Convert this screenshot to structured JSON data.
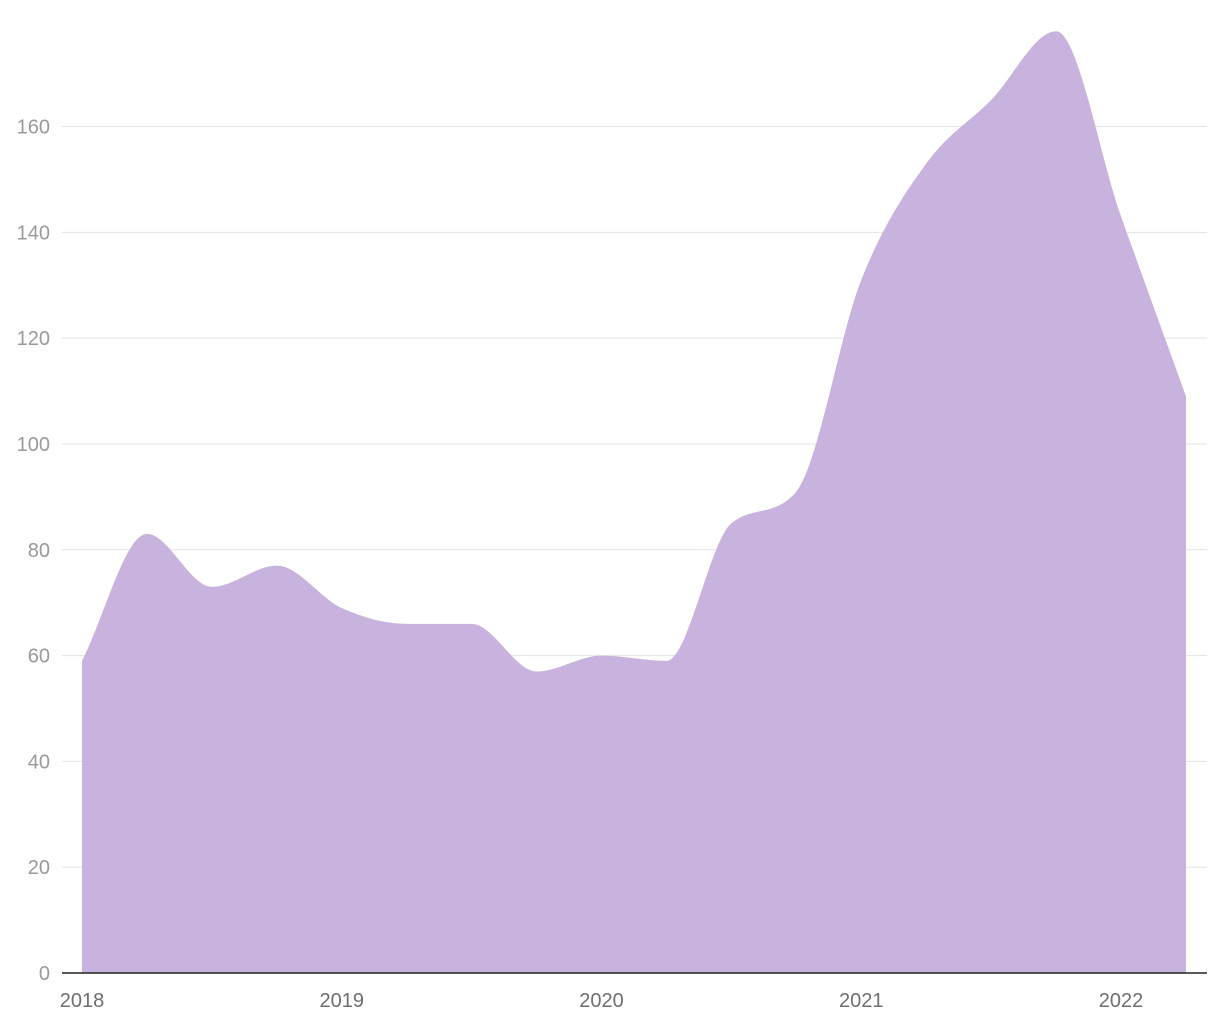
{
  "chart_data": {
    "type": "area",
    "title": "",
    "xlabel": "",
    "ylabel": "",
    "x": [
      "2018-01",
      "2018-04",
      "2018-07",
      "2018-10",
      "2019-01",
      "2019-04",
      "2019-07",
      "2019-10",
      "2020-01",
      "2020-04",
      "2020-07",
      "2020-10",
      "2021-01",
      "2021-04",
      "2021-07",
      "2021-10",
      "2022-01",
      "2022-04"
    ],
    "series": [
      {
        "values": [
          59,
          83,
          73,
          77,
          69,
          66,
          66,
          57,
          60,
          59,
          85,
          91,
          131,
          153,
          165,
          178,
          143,
          109
        ]
      }
    ],
    "xlim": [
      "2018-01",
      "2022-04"
    ],
    "ylim": [
      0,
      180
    ],
    "y_ticks": [
      0,
      20,
      40,
      60,
      80,
      100,
      120,
      140,
      160
    ],
    "x_ticks": [
      "2018",
      "2019",
      "2020",
      "2021",
      "2022"
    ],
    "grid": true,
    "legend": "none",
    "colors": {
      "fill": "#c8b2de",
      "grid": "#e2e2e2",
      "axis": "#222222",
      "y_tick_text": "#9a9a9a",
      "x_tick_text": "#6f6f6f"
    }
  }
}
